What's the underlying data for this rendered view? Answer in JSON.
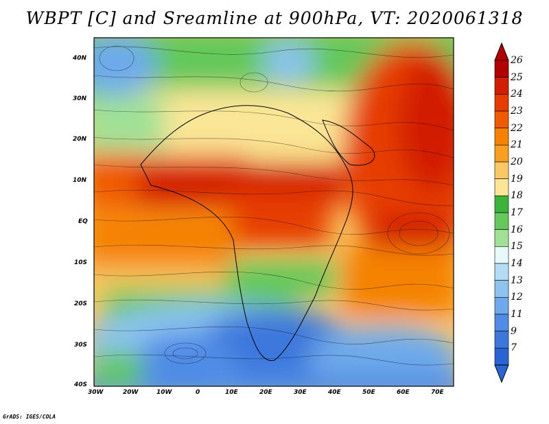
{
  "title": "WBPT [C] and Sreamline at 900hPa, VT: 2020061318",
  "credit": "GrADS: IGES/COLA",
  "lat_labels": [
    "40N",
    "30N",
    "20N",
    "10N",
    "EQ",
    "10S",
    "20S",
    "30S",
    "40S"
  ],
  "lon_labels": [
    "30W",
    "20W",
    "10W",
    "0",
    "10E",
    "20E",
    "30E",
    "40E",
    "50E",
    "60E",
    "70E"
  ],
  "colorbar": {
    "levels": [
      "26",
      "25",
      "24",
      "23",
      "22",
      "21",
      "20",
      "19",
      "18",
      "17",
      "16",
      "15",
      "14",
      "13",
      "12",
      "11",
      "9",
      "7"
    ],
    "colors": [
      "#b40000",
      "#d21e00",
      "#e63c00",
      "#f05a00",
      "#f58200",
      "#faa01e",
      "#fac864",
      "#fae696",
      "#3cb43c",
      "#64c85a",
      "#a0e196",
      "#e6fafa",
      "#b4dcf5",
      "#8cc3f0",
      "#6eaaeb",
      "#508ce6",
      "#3c78dc",
      "#2864d2"
    ]
  }
}
